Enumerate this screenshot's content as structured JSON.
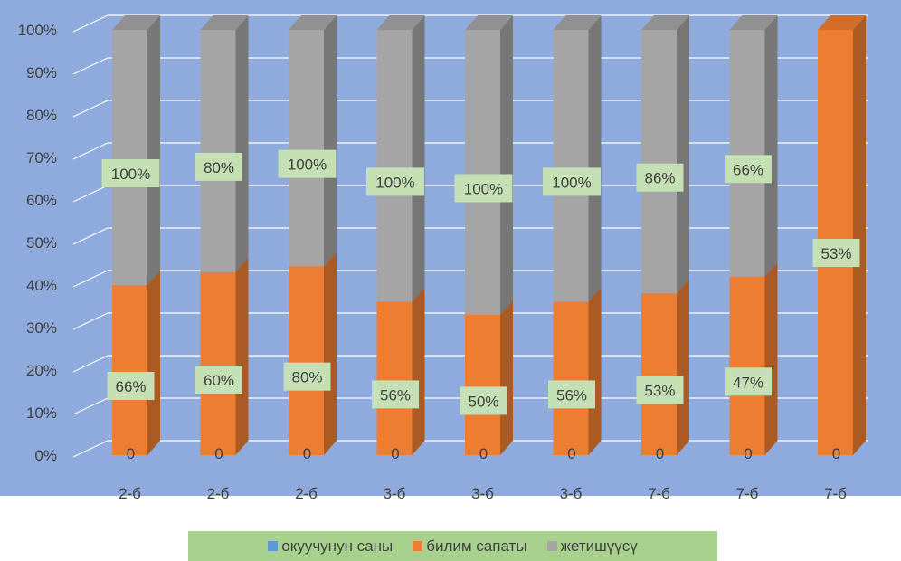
{
  "chart_data": {
    "type": "bar",
    "stacked": true,
    "three_d": true,
    "categories": [
      "2-б",
      "2-б",
      "2-б",
      "3-б",
      "3-б",
      "3-б",
      "7-б",
      "7-б",
      "7-б"
    ],
    "y_ticks": [
      "0%",
      "10%",
      "20%",
      "30%",
      "40%",
      "50%",
      "60%",
      "70%",
      "80%",
      "90%",
      "100%"
    ],
    "ylim": [
      0,
      1
    ],
    "grid": true,
    "legend_position": "bottom",
    "series": [
      {
        "name": "окуучунун саны",
        "color": "#5b9bd5",
        "values": [
          0,
          0,
          0,
          0,
          0,
          0,
          0,
          0,
          0
        ],
        "labels": [
          "0",
          "0",
          "0",
          "0",
          "0",
          "0",
          "0",
          "0",
          "0"
        ]
      },
      {
        "name": "билим сапаты",
        "color": "#ed7d31",
        "values": [
          0.4,
          0.43,
          0.444,
          0.36,
          0.33,
          0.36,
          0.38,
          0.42,
          1.0
        ],
        "labels": [
          "66%",
          "60%",
          "80%",
          "56%",
          "50%",
          "56%",
          "53%",
          "47%",
          "53%"
        ]
      },
      {
        "name": "жетишүүсү",
        "color": "#a5a5a5",
        "values": [
          0.6,
          0.57,
          0.556,
          0.64,
          0.67,
          0.64,
          0.62,
          0.58,
          0
        ],
        "labels": [
          "100%",
          "80%",
          "100%",
          "100%",
          "100%",
          "100%",
          "86%",
          "66%",
          ""
        ]
      }
    ],
    "colors": {
      "plot_background": "#8faadc",
      "label_box": "#c5e0b4",
      "legend_background": "#a9d18e"
    }
  }
}
